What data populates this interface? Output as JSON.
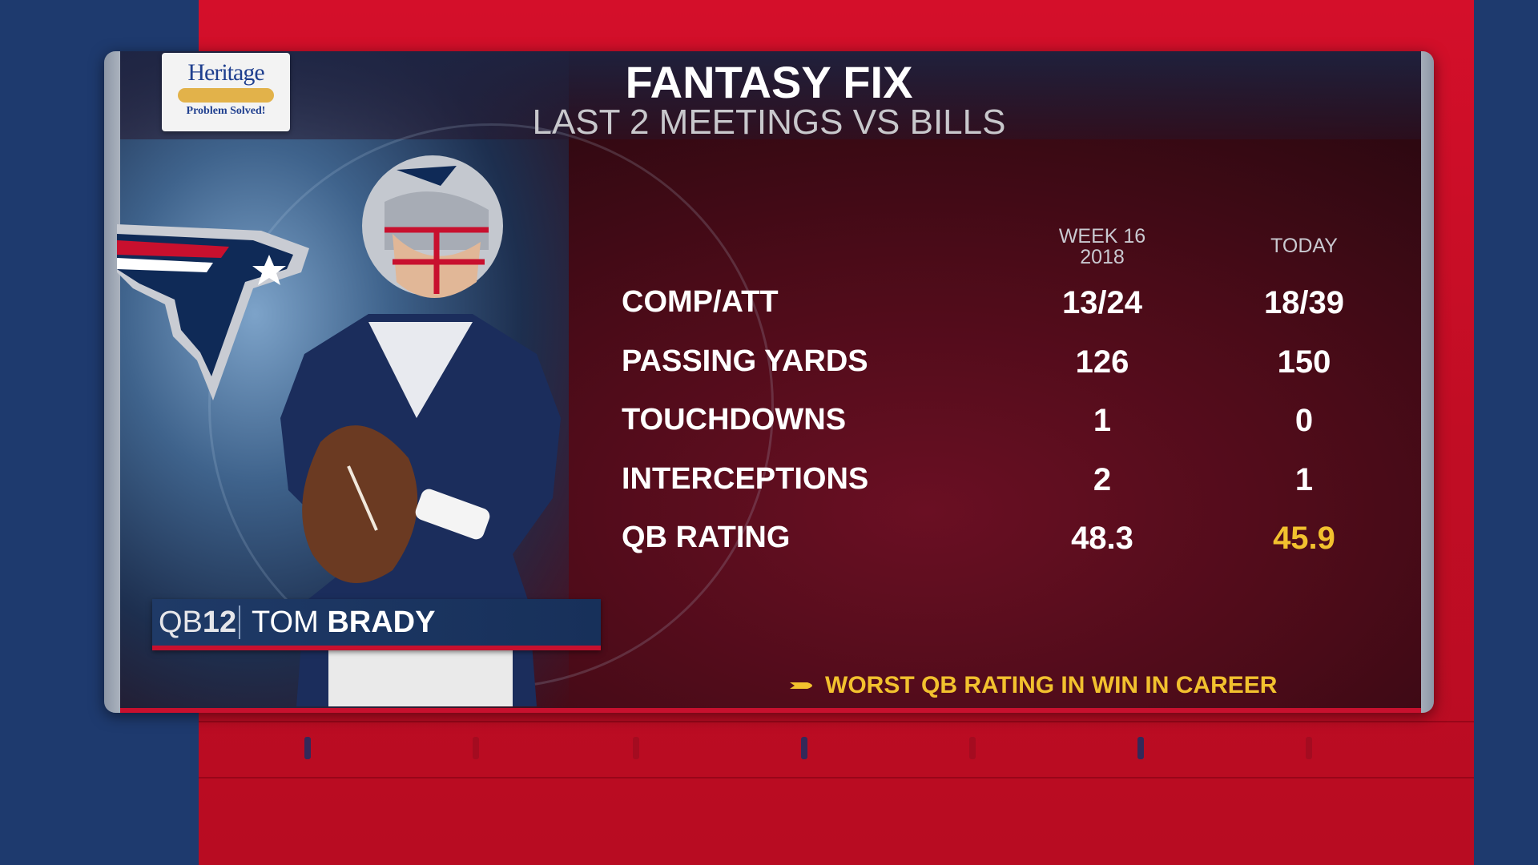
{
  "sponsor": {
    "name": "Heritage",
    "tagline": "Problem Solved!"
  },
  "header": {
    "title": "FANTASY FIX",
    "subtitle": "LAST 2 MEETINGS VS BILLS"
  },
  "table": {
    "columns": [
      {
        "line1": "WEEK 16",
        "line2": "2018"
      },
      {
        "line1": "TODAY",
        "line2": ""
      }
    ],
    "rows": [
      {
        "label": "COMP/ATT",
        "values": [
          "13/24",
          "18/39"
        ]
      },
      {
        "label": "PASSING YARDS",
        "values": [
          "126",
          "150"
        ]
      },
      {
        "label": "TOUCHDOWNS",
        "values": [
          "1",
          "0"
        ]
      },
      {
        "label": "INTERCEPTIONS",
        "values": [
          "2",
          "1"
        ]
      },
      {
        "label": "QB RATING",
        "values": [
          "48.3",
          "45.9"
        ]
      }
    ]
  },
  "player": {
    "position": "QB",
    "number": "12",
    "first_name": "TOM",
    "last_name": "BRADY"
  },
  "note": {
    "text": "WORST QB RATING IN WIN IN CAREER",
    "icon": "pointer-icon"
  },
  "colors": {
    "highlight": "#f2c12e",
    "accent_red": "#c8102e",
    "navy": "#1f3a67"
  }
}
